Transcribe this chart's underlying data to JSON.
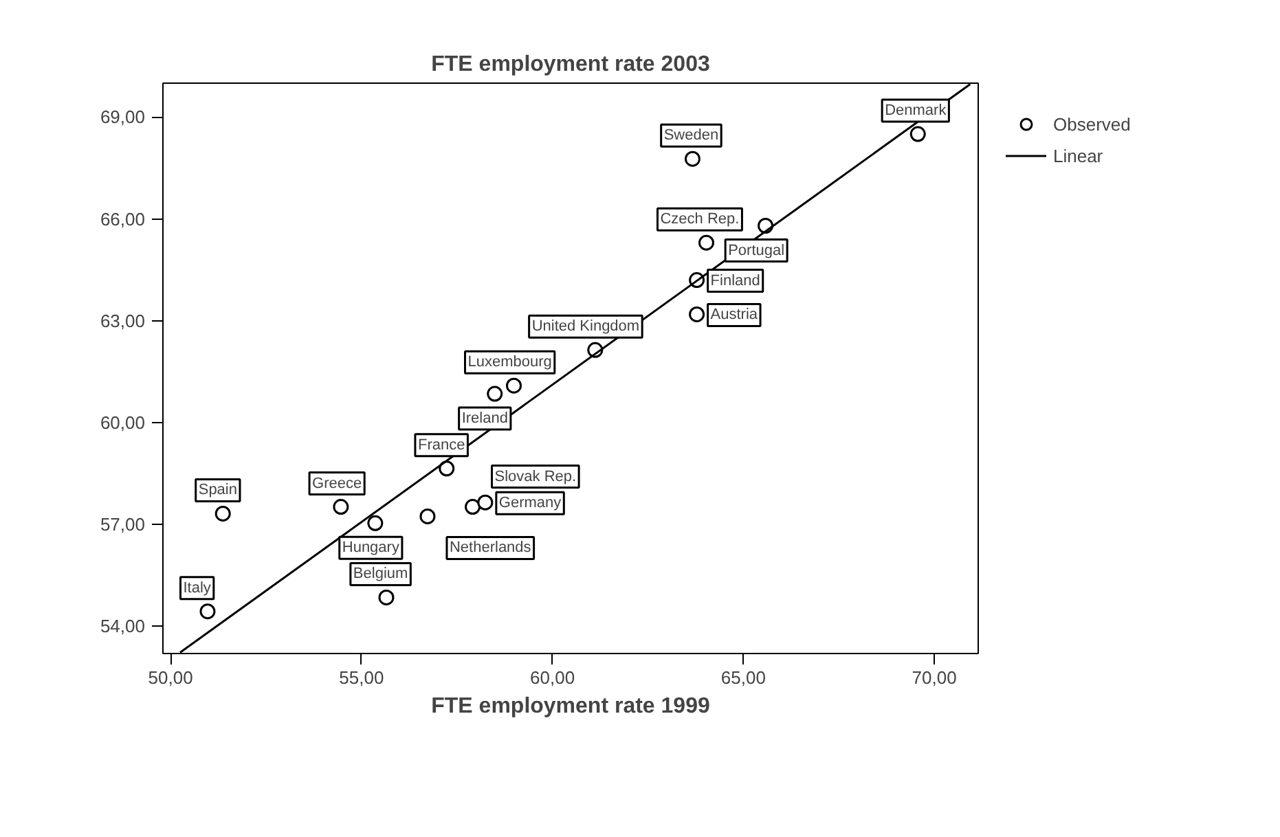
{
  "chart_data": {
    "type": "scatter",
    "title": "FTE employment rate 2003",
    "xlabel": "FTE employment rate 1999",
    "xlim": [
      49.8,
      71.15
    ],
    "ylim": [
      53.2,
      70.0
    ],
    "xticks": [
      {
        "value": 50,
        "label": "50,00"
      },
      {
        "value": 55,
        "label": "55,00"
      },
      {
        "value": 60,
        "label": "60,00"
      },
      {
        "value": 65,
        "label": "65,00"
      },
      {
        "value": 70,
        "label": "70,00"
      }
    ],
    "yticks": [
      {
        "value": 54,
        "label": "54,00"
      },
      {
        "value": 57,
        "label": "57,00"
      },
      {
        "value": 60,
        "label": "60,00"
      },
      {
        "value": 63,
        "label": "63,00"
      },
      {
        "value": 66,
        "label": "66,00"
      },
      {
        "value": 69,
        "label": "69,00"
      }
    ],
    "grid": false,
    "legend": "top right",
    "marker": "circle",
    "series": [
      {
        "name": "Observed",
        "color": "#000000",
        "x": [
          51.37,
          50.97,
          54.46,
          55.36,
          55.65,
          56.73,
          57.91,
          58.24,
          57.23,
          58.49,
          58.99,
          61.12,
          63.78,
          63.78,
          64.03,
          65.58,
          63.67,
          69.57
        ],
        "values": [
          57.32,
          54.44,
          57.52,
          57.04,
          54.85,
          57.24,
          57.52,
          57.65,
          58.65,
          60.85,
          61.09,
          62.14,
          63.19,
          64.2,
          65.3,
          65.8,
          67.77,
          68.5
        ]
      },
      {
        "name": "Linear",
        "type": "line",
        "marker": "none",
        "color": "#000000",
        "x": [
          50.25,
          70.94
        ],
        "values": [
          53.23,
          69.97
        ]
      }
    ],
    "annotations": [
      {
        "text": "Spain",
        "x": 51.37,
        "y": 57.32
      },
      {
        "text": "Italy",
        "x": 50.97,
        "y": 54.44
      },
      {
        "text": "Greece",
        "x": 54.46,
        "y": 57.52
      },
      {
        "text": "Hungary",
        "x": 55.36,
        "y": 57.04
      },
      {
        "text": "Belgium",
        "x": 55.65,
        "y": 54.85
      },
      {
        "text": "Netherlands",
        "x": 56.73,
        "y": 57.24
      },
      {
        "text": "Slovak Rep.",
        "x": 57.91,
        "y": 57.52
      },
      {
        "text": "Germany",
        "x": 58.24,
        "y": 57.65
      },
      {
        "text": "France",
        "x": 57.23,
        "y": 58.65
      },
      {
        "text": "Ireland",
        "x": 58.49,
        "y": 60.85
      },
      {
        "text": "Luxembourg",
        "x": 58.99,
        "y": 61.09
      },
      {
        "text": "United Kingdom",
        "x": 61.12,
        "y": 62.14
      },
      {
        "text": "Austria",
        "x": 63.78,
        "y": 63.19
      },
      {
        "text": "Finland",
        "x": 63.78,
        "y": 64.2
      },
      {
        "text": "Czech Rep.",
        "x": 64.03,
        "y": 65.3
      },
      {
        "text": "Portugal",
        "x": 65.58,
        "y": 65.8
      },
      {
        "text": "Sweden",
        "x": 63.67,
        "y": 67.77
      },
      {
        "text": "Denmark",
        "x": 69.57,
        "y": 68.5
      }
    ]
  }
}
